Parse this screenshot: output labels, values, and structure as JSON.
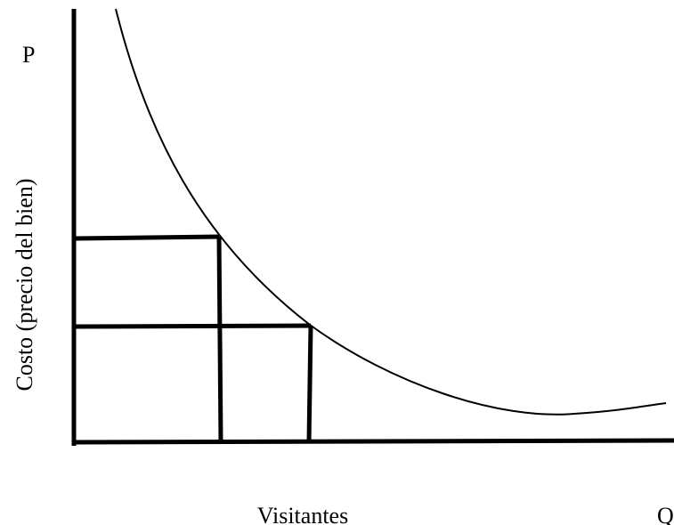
{
  "axis_symbols": {
    "y": "P",
    "x": "Q"
  },
  "axis_labels": {
    "y": "Costo (precio del bien)",
    "x": "Visitantes"
  }
}
